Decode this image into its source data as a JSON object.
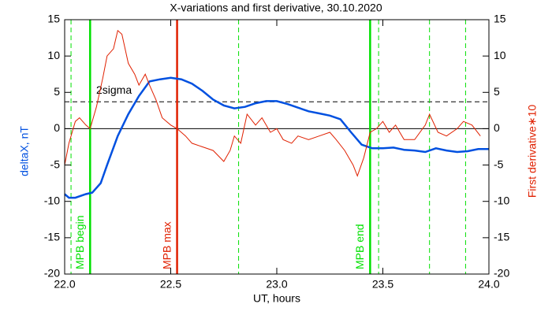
{
  "chart_data": {
    "type": "line",
    "title": "X-variations and first derivative, 30.10.2020",
    "xlabel": "UT, hours",
    "ylabel": "deltaX, nT",
    "y2label": "First derivative∗10",
    "xlim": [
      22,
      24
    ],
    "xticks": [
      {
        "value": 22,
        "label": "22.0"
      },
      {
        "value": 22.5,
        "label": "22.5"
      },
      {
        "value": 23,
        "label": "23.0"
      },
      {
        "value": 23.5,
        "label": "23.5"
      },
      {
        "value": 24,
        "label": "24.0"
      }
    ],
    "ylim": [
      -20,
      15
    ],
    "yticks": [
      -20,
      -15,
      -10,
      -5,
      0,
      5,
      10,
      15
    ],
    "y2lim": [
      -20,
      15
    ],
    "y2ticks": [
      -20,
      -15,
      -10,
      -5,
      0,
      5,
      10,
      15
    ],
    "series": [
      {
        "name": "deltaX, nT",
        "color": "#0050e0",
        "axis": "y",
        "x": [
          22.0,
          22.02,
          22.05,
          22.1,
          22.13,
          22.17,
          22.2,
          22.25,
          22.3,
          22.35,
          22.4,
          22.45,
          22.5,
          22.55,
          22.6,
          22.65,
          22.7,
          22.75,
          22.8,
          22.85,
          22.9,
          22.95,
          23.0,
          23.05,
          23.1,
          23.15,
          23.2,
          23.25,
          23.3,
          23.35,
          23.4,
          23.45,
          23.5,
          23.55,
          23.6,
          23.65,
          23.7,
          23.75,
          23.8,
          23.85,
          23.9,
          23.95,
          24.0
        ],
        "values": [
          -9,
          -9.5,
          -9.5,
          -9,
          -8.8,
          -7.5,
          -5,
          -1,
          2,
          4.5,
          6.5,
          6.8,
          7,
          6.8,
          6.2,
          5.2,
          4,
          3.2,
          2.8,
          3,
          3.5,
          3.8,
          3.8,
          3.4,
          2.9,
          2.4,
          2.1,
          1.8,
          1.3,
          -0.5,
          -2.2,
          -2.7,
          -2.7,
          -2.6,
          -2.9,
          -3,
          -3.2,
          -2.7,
          -3,
          -3.2,
          -3.1,
          -2.8,
          -2.8
        ]
      },
      {
        "name": "First derivative∗10",
        "color": "#e02000",
        "axis": "y2",
        "x": [
          22.0,
          22.02,
          22.05,
          22.07,
          22.1,
          22.12,
          22.15,
          22.18,
          22.2,
          22.23,
          22.25,
          22.27,
          22.3,
          22.33,
          22.35,
          22.38,
          22.4,
          22.43,
          22.46,
          22.5,
          22.53,
          22.57,
          22.6,
          22.65,
          22.7,
          22.75,
          22.78,
          22.8,
          22.83,
          22.86,
          22.9,
          22.93,
          22.97,
          23.0,
          23.03,
          23.07,
          23.1,
          23.15,
          23.2,
          23.25,
          23.28,
          23.32,
          23.36,
          23.38,
          23.41,
          23.44,
          23.47,
          23.5,
          23.53,
          23.56,
          23.6,
          23.65,
          23.7,
          23.72,
          23.76,
          23.8,
          23.85,
          23.88,
          23.92,
          23.96
        ],
        "values": [
          -5,
          -2,
          1,
          1.5,
          0.5,
          0,
          3,
          7,
          10,
          11,
          13.5,
          13,
          9,
          7.5,
          6,
          7.5,
          6,
          4,
          1.5,
          0.5,
          0,
          -1,
          -2,
          -2.5,
          -3,
          -4.5,
          -3,
          -1,
          -2,
          2,
          0.5,
          1.5,
          -0.5,
          0,
          -1.5,
          -2,
          -1,
          -1.5,
          -1,
          -0.5,
          -1.5,
          -3,
          -5,
          -6.5,
          -4,
          -0.5,
          0,
          1,
          -0.5,
          0.5,
          -1.5,
          -1.5,
          0.5,
          2,
          -0.5,
          -1,
          0,
          1,
          0.5,
          -1
        ]
      }
    ],
    "hlines": [
      {
        "y": 3.7,
        "label": "2sigma",
        "style": "dashed",
        "color": "#000000"
      },
      {
        "y": 0,
        "style": "solid",
        "color": "#000000"
      }
    ],
    "vlines": [
      {
        "x": 22.12,
        "label": "MPB begin",
        "style": "solid",
        "color": "#00e000"
      },
      {
        "x": 22.53,
        "label": "MPB max",
        "style": "solid",
        "color": "#e02000"
      },
      {
        "x": 23.44,
        "label": "MPB end",
        "style": "solid",
        "color": "#00e000"
      },
      {
        "x": 22.03,
        "style": "dashed",
        "color": "#00e000"
      },
      {
        "x": 22.82,
        "style": "dashed",
        "color": "#00e000"
      },
      {
        "x": 23.48,
        "style": "dashed",
        "color": "#00e000"
      },
      {
        "x": 23.72,
        "style": "dashed",
        "color": "#00e000"
      },
      {
        "x": 23.89,
        "style": "dashed",
        "color": "#00e000"
      }
    ]
  }
}
